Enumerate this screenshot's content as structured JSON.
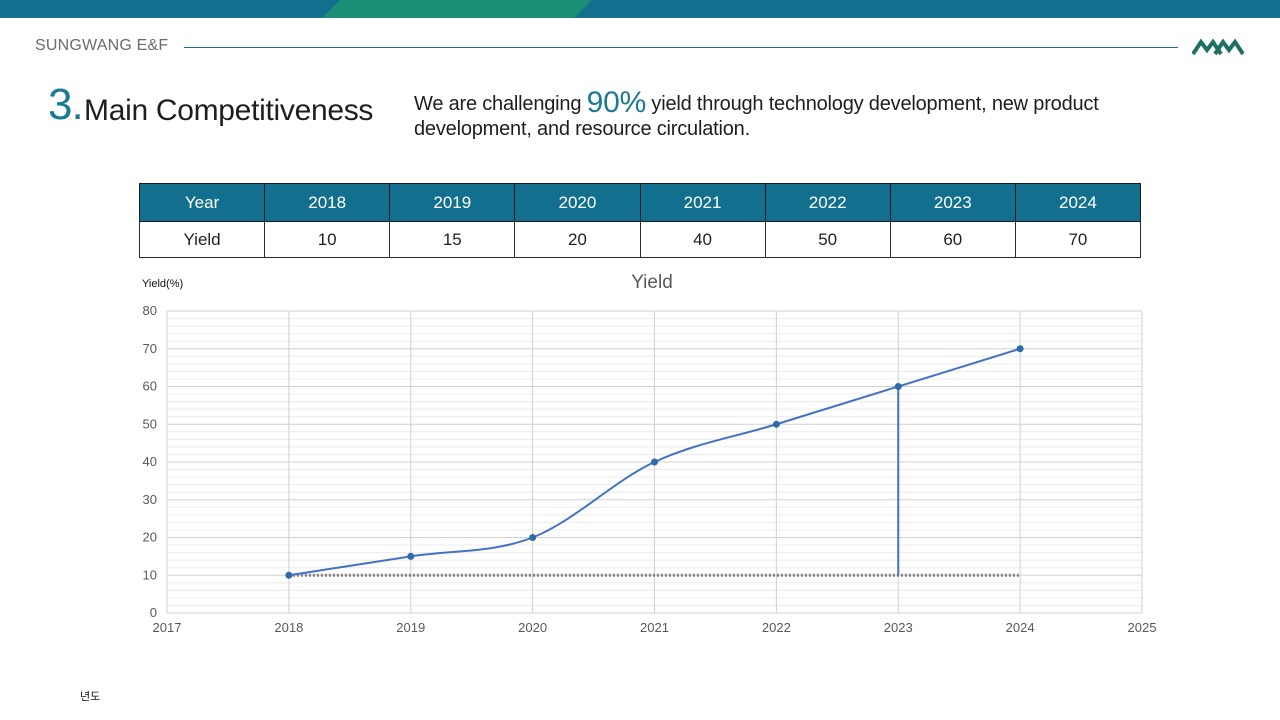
{
  "header": {
    "brand": "SUNGWANG E&F",
    "accent_color": "#1d6f8c",
    "logo_color": "#1f6f63"
  },
  "section": {
    "number": "3.",
    "title": "Main Competitiveness",
    "intro_before": "We are challenging ",
    "intro_highlight": "90%",
    "intro_after": " yield through technology development, new product development, and resource circulation."
  },
  "table": {
    "header": [
      "Year",
      "2018",
      "2019",
      "2020",
      "2021",
      "2022",
      "2023",
      "2024"
    ],
    "row": [
      "Yield",
      "10",
      "15",
      "20",
      "40",
      "50",
      "60",
      "70"
    ],
    "header_bg": "#136f8e"
  },
  "chart_data": {
    "type": "scatter",
    "title": "Yield",
    "ylabel": "Yield(%)",
    "xlabel": "년도",
    "xlim": [
      2017,
      2025
    ],
    "ylim": [
      0,
      80
    ],
    "x_ticks": [
      2017,
      2018,
      2019,
      2020,
      2021,
      2022,
      2023,
      2024,
      2025
    ],
    "y_ticks": [
      0,
      10,
      20,
      30,
      40,
      50,
      60,
      70,
      80
    ],
    "grid": true,
    "legend": "none",
    "line_style": "smooth",
    "series": [
      {
        "x": [
          2018,
          2019,
          2020,
          2021,
          2022,
          2023,
          2024
        ],
        "y": [
          10,
          15,
          20,
          40,
          50,
          60,
          70
        ],
        "color": "#4472c4"
      }
    ],
    "reference_line": {
      "y": 10,
      "x_range": [
        2018,
        2024
      ],
      "style": "dotted",
      "color": "#7f7f7f"
    },
    "drop_line": {
      "x": 2023,
      "y_range": [
        10,
        60
      ],
      "color": "#4472c4"
    }
  }
}
